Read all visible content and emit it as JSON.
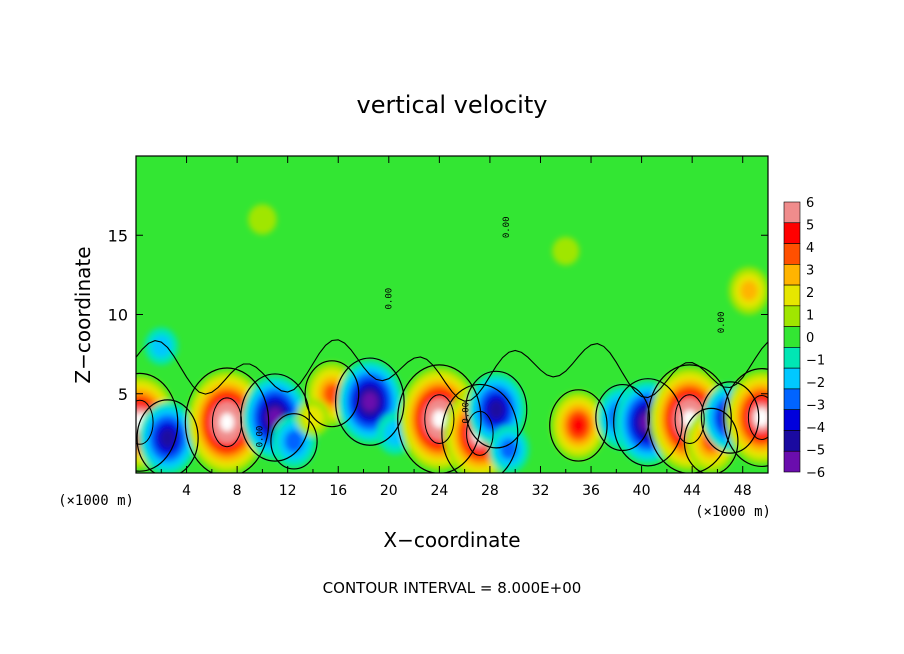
{
  "chart_data": {
    "type": "heatmap",
    "title": "vertical velocity",
    "xlabel": "X−coordinate",
    "ylabel": "Z−coordinate",
    "x_units_label": "(×1000 m)",
    "y_units_label": "(×1000 m)",
    "xlim": [
      0,
      50
    ],
    "ylim": [
      0,
      20
    ],
    "x_ticks": [
      "4",
      "8",
      "12",
      "16",
      "20",
      "24",
      "28",
      "32",
      "36",
      "40",
      "44",
      "48"
    ],
    "y_ticks": [
      "5",
      "10",
      "15"
    ],
    "colorbar_ticks": [
      "6",
      "5",
      "4",
      "3",
      "2",
      "1",
      "0",
      "−1",
      "−2",
      "−3",
      "−4",
      "−5",
      "−6"
    ],
    "colorbar_range": [
      -6,
      6
    ],
    "contour_label": "0.00",
    "footer": "CONTOUR INTERVAL = 8.000E+00",
    "features": [
      {
        "x": 0.3,
        "z": 3.2,
        "w": 7
      },
      {
        "x": 2.5,
        "z": 2.2,
        "w": -5
      },
      {
        "x": 7.2,
        "z": 3.2,
        "w": 8
      },
      {
        "x": 11,
        "z": 3.5,
        "w": -6
      },
      {
        "x": 12.5,
        "z": 2.0,
        "w": -3
      },
      {
        "x": 15.5,
        "z": 5.0,
        "w": 4
      },
      {
        "x": 14,
        "z": 3.5,
        "w": 1.5
      },
      {
        "x": 18.5,
        "z": 4.5,
        "w": -6
      },
      {
        "x": 20.5,
        "z": 2.5,
        "w": -2
      },
      {
        "x": 24,
        "z": 3.4,
        "w": 8
      },
      {
        "x": 27.2,
        "z": 2.5,
        "w": 7
      },
      {
        "x": 28.5,
        "z": 4.0,
        "w": -5
      },
      {
        "x": 29.5,
        "z": 1.5,
        "w": -2.5
      },
      {
        "x": 35,
        "z": 3.0,
        "w": 4.5
      },
      {
        "x": 38.5,
        "z": 3.5,
        "w": -4
      },
      {
        "x": 40.5,
        "z": 3.2,
        "w": -6
      },
      {
        "x": 43.8,
        "z": 3.4,
        "w": 8
      },
      {
        "x": 45.5,
        "z": 2.0,
        "w": 4
      },
      {
        "x": 47,
        "z": 3.5,
        "w": -4.5
      },
      {
        "x": 49.5,
        "z": 3.5,
        "w": 7
      },
      {
        "x": 48.5,
        "z": 11.5,
        "w": 2.5
      },
      {
        "x": 2,
        "z": 8,
        "w": -1.5
      },
      {
        "x": 10,
        "z": 16,
        "w": 0.8
      },
      {
        "x": 34,
        "z": 14,
        "w": 0.6
      }
    ],
    "colormap": [
      {
        "v": -6,
        "c": "#6a0dad"
      },
      {
        "v": -5,
        "c": "#1a0aa0"
      },
      {
        "v": -4,
        "c": "#0000dc"
      },
      {
        "v": -3,
        "c": "#0064ff"
      },
      {
        "v": -2,
        "c": "#00c8ff"
      },
      {
        "v": -1,
        "c": "#00e6b4"
      },
      {
        "v": 0,
        "c": "#33e633"
      },
      {
        "v": 1,
        "c": "#a0e600"
      },
      {
        "v": 2,
        "c": "#e6e600"
      },
      {
        "v": 3,
        "c": "#ffb400"
      },
      {
        "v": 4,
        "c": "#ff5000"
      },
      {
        "v": 5,
        "c": "#ff0000"
      },
      {
        "v": 6,
        "c": "#f08c8c"
      }
    ],
    "grid": false,
    "legend": "right colorbar"
  }
}
